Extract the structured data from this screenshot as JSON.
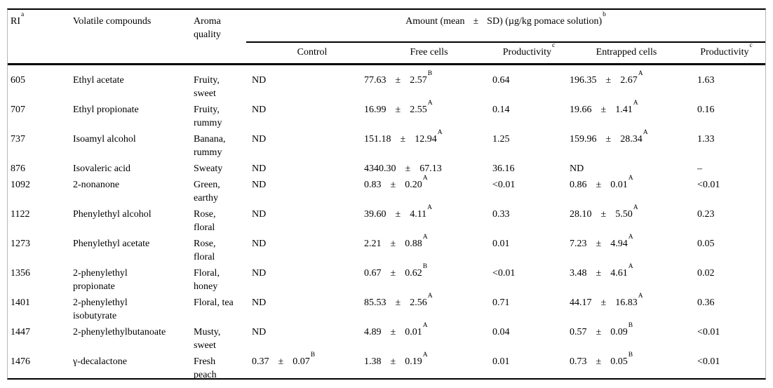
{
  "table": {
    "pm_symbol": "±",
    "header": {
      "ri": {
        "label": "RI",
        "sup": "a"
      },
      "compounds": "Volatile compounds",
      "aroma": "Aroma quality",
      "amount": {
        "prefix": "Amount (mean",
        "pm": "±",
        "suffix": "SD) (µg/kg pomace solution)",
        "sup": "b"
      },
      "sub": {
        "control": "Control",
        "free": "Free cells",
        "productivity_free": {
          "label": "Productivity",
          "sup": "c"
        },
        "entrapped": "Entrapped cells",
        "productivity_entrapped": {
          "label": "Productivity",
          "sup": "c"
        }
      }
    },
    "rows": [
      {
        "ri": "605",
        "compound": "Ethyl acetate",
        "aroma": "Fruity, sweet",
        "control": "ND",
        "free": {
          "mean": "77.63",
          "sd": "2.57",
          "sup": "B"
        },
        "free_productivity": "0.64",
        "entrapped": {
          "mean": "196.35",
          "sd": "2.67",
          "sup": "A"
        },
        "entrapped_productivity": "1.63"
      },
      {
        "ri": "707",
        "compound": "Ethyl propionate",
        "aroma": "Fruity, rummy",
        "control": "ND",
        "free": {
          "mean": "16.99",
          "sd": "2.55",
          "sup": "A"
        },
        "free_productivity": "0.14",
        "entrapped": {
          "mean": "19.66",
          "sd": "1.41",
          "sup": "A"
        },
        "entrapped_productivity": "0.16"
      },
      {
        "ri": "737",
        "compound": "Isoamyl alcohol",
        "aroma": "Banana, rummy",
        "control": "ND",
        "free": {
          "mean": "151.18",
          "sd": "12.94",
          "sup": "A"
        },
        "free_productivity": "1.25",
        "entrapped": {
          "mean": "159.96",
          "sd": "28.34",
          "sup": "A"
        },
        "entrapped_productivity": "1.33"
      },
      {
        "ri": "876",
        "compound": "Isovaleric acid",
        "aroma": "Sweaty",
        "control": "ND",
        "free": {
          "mean": "4340.30",
          "sd": "67.13",
          "sup": ""
        },
        "free_productivity": "36.16",
        "entrapped": "ND",
        "entrapped_productivity": "–"
      },
      {
        "ri": "1092",
        "compound": "2-nonanone",
        "aroma": "Green, earthy",
        "control": "ND",
        "free": {
          "mean": "0.83",
          "sd": "0.20",
          "sup": "A"
        },
        "free_productivity": "<0.01",
        "entrapped": {
          "mean": "0.86",
          "sd": "0.01",
          "sup": "A"
        },
        "entrapped_productivity": "<0.01"
      },
      {
        "ri": "1122",
        "compound": "Phenylethyl alcohol",
        "aroma": "Rose, floral",
        "control": "ND",
        "free": {
          "mean": "39.60",
          "sd": "4.11",
          "sup": "A"
        },
        "free_productivity": "0.33",
        "entrapped": {
          "mean": "28.10",
          "sd": "5.50",
          "sup": "A"
        },
        "entrapped_productivity": "0.23"
      },
      {
        "ri": "1273",
        "compound": "Phenylethyl acetate",
        "aroma": "Rose, floral",
        "control": "ND",
        "free": {
          "mean": "2.21",
          "sd": "0.88",
          "sup": "A"
        },
        "free_productivity": "0.01",
        "entrapped": {
          "mean": "7.23",
          "sd": "4.94",
          "sup": "A"
        },
        "entrapped_productivity": "0.05"
      },
      {
        "ri": "1356",
        "compound": "2-phenylethyl propionate",
        "aroma": "Floral, honey",
        "control": "ND",
        "free": {
          "mean": "0.67",
          "sd": "0.62",
          "sup": "B"
        },
        "free_productivity": "<0.01",
        "entrapped": {
          "mean": "3.48",
          "sd": "4.61",
          "sup": "A"
        },
        "entrapped_productivity": "0.02"
      },
      {
        "ri": "1401",
        "compound": "2-phenylethyl isobutyrate",
        "aroma": "Floral, tea",
        "control": "ND",
        "free": {
          "mean": "85.53",
          "sd": "2.56",
          "sup": "A"
        },
        "free_productivity": "0.71",
        "entrapped": {
          "mean": "44.17",
          "sd": "16.83",
          "sup": "A"
        },
        "entrapped_productivity": "0.36"
      },
      {
        "ri": "1447",
        "compound": "2-phenylethylbutanoate",
        "aroma": "Musty, sweet",
        "control": "ND",
        "free": {
          "mean": "4.89",
          "sd": "0.01",
          "sup": "A"
        },
        "free_productivity": "0.04",
        "entrapped": {
          "mean": "0.57",
          "sd": "0.09",
          "sup": "B"
        },
        "entrapped_productivity": "<0.01"
      },
      {
        "ri": "1476",
        "compound": "γ-decalactone",
        "aroma": "Fresh peach",
        "control": {
          "mean": "0.37",
          "sd": "0.07",
          "sup": "B"
        },
        "free": {
          "mean": "1.38",
          "sd": "0.19",
          "sup": "A"
        },
        "free_productivity": "0.01",
        "entrapped": {
          "mean": "0.73",
          "sd": "0.05",
          "sup": "B"
        },
        "entrapped_productivity": "<0.01"
      }
    ]
  },
  "colors": {
    "background": "#ffffff",
    "text": "#000000",
    "rule": "#000000",
    "frame": "#b7b7b7"
  }
}
